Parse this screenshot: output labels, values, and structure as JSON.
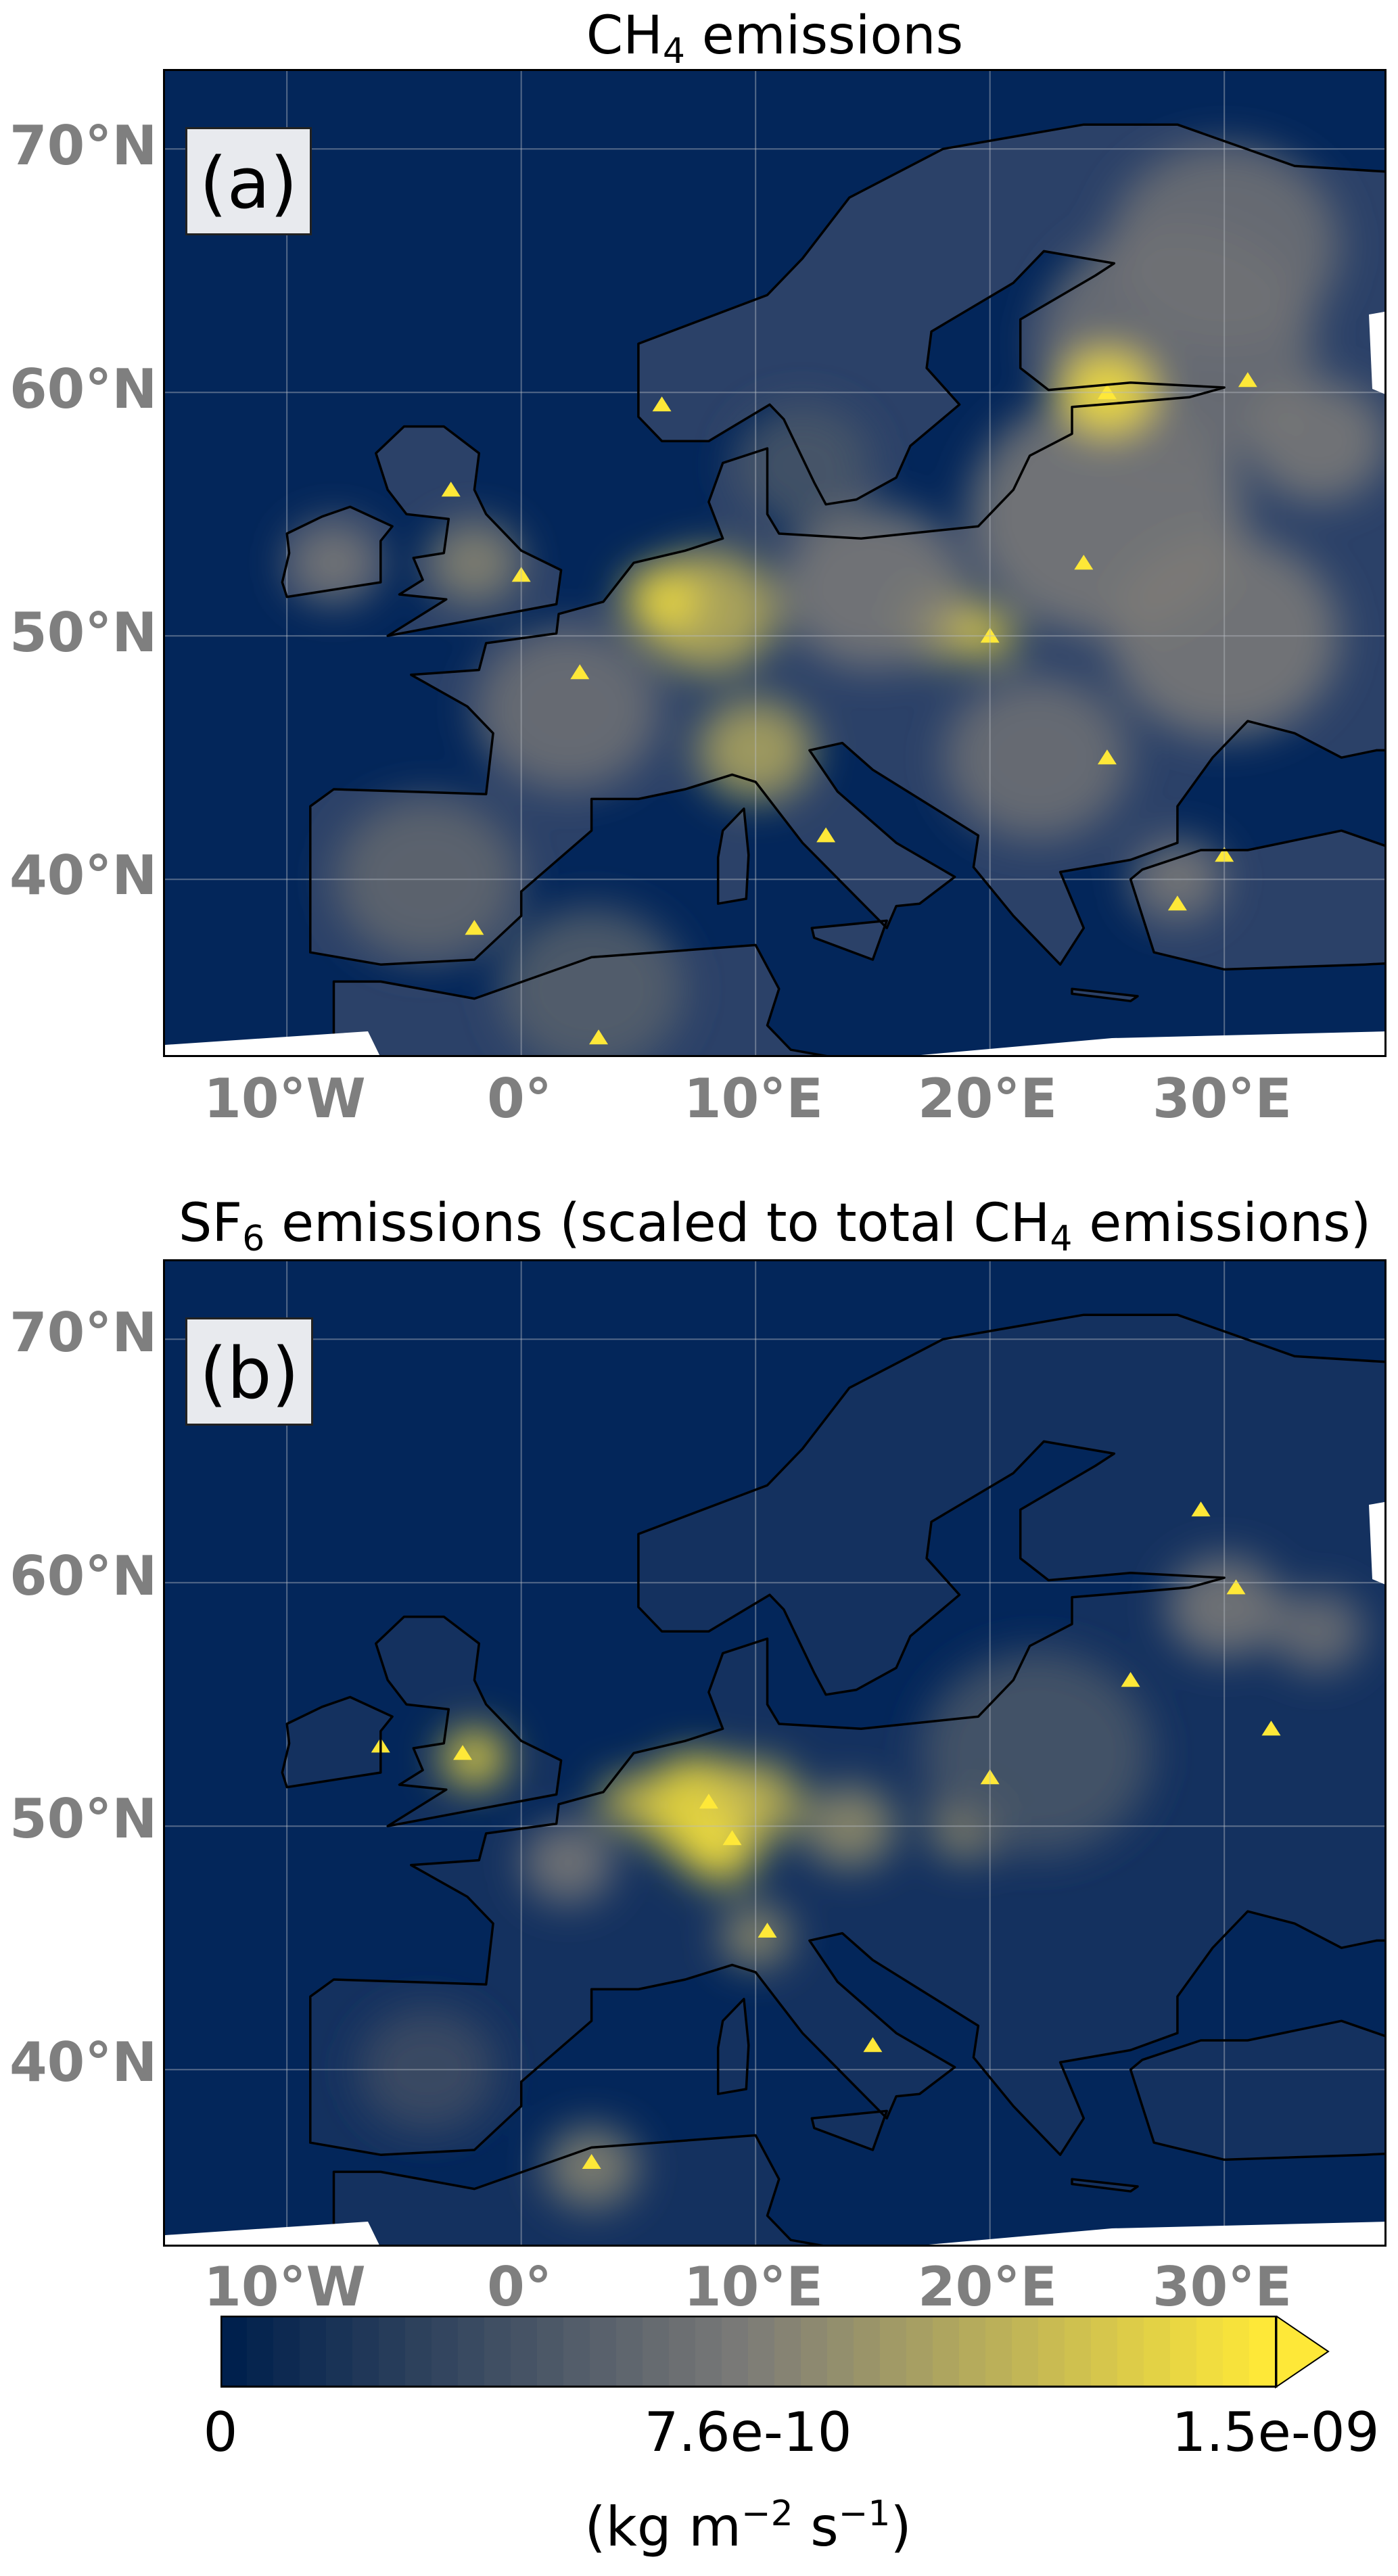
{
  "panels": [
    {
      "label": "(a)",
      "title": {
        "p1": "CH",
        "sub1": "4",
        "p2": " emissions",
        "sub2": "",
        "p3": ""
      },
      "pattern": "widespread"
    },
    {
      "label": "(b)",
      "title": {
        "p1": "SF",
        "sub1": "6",
        "p2": " emissions (scaled to total CH",
        "sub2": "4",
        "p3": " emissions)"
      },
      "pattern": "concentrated"
    }
  ],
  "axes": {
    "lat_ticks": [
      "70°N",
      "60°N",
      "50°N",
      "40°N"
    ],
    "lon_ticks": [
      "10°W",
      "0°",
      "10°E",
      "20°E",
      "30°E"
    ]
  },
  "chart_data": {
    "type": "heatmap",
    "colormap": "cividis",
    "lon_range": [
      -15,
      37
    ],
    "lat_range": [
      33,
      73
    ],
    "grid": true,
    "colorbar": {
      "ticks": [
        "0",
        "7.6e-10",
        "1.5e-09"
      ],
      "values": [
        0,
        7.6e-10,
        1.5e-09
      ],
      "extend": "max",
      "unit": {
        "p1": "(kg m",
        "sup1": "−2",
        "p2": " s",
        "sup2": "−1",
        "p3": ")"
      },
      "placement": "bottom"
    }
  },
  "colors": {
    "low": "#00204d",
    "mid": "#7c7b78",
    "high": "#fee838",
    "coast": "#000000",
    "tick": "#7f7f7f"
  }
}
